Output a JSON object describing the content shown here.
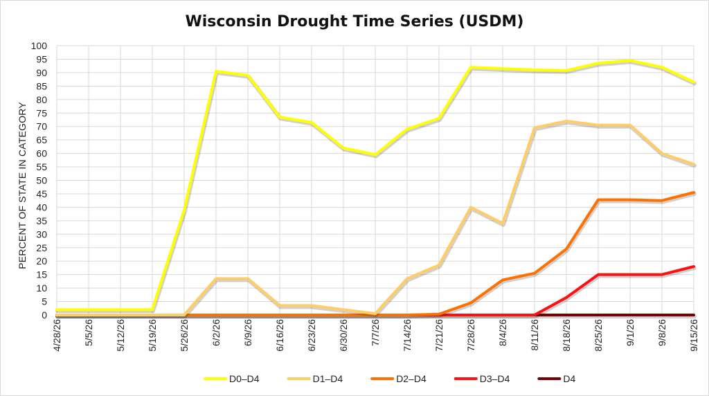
{
  "chart_data": {
    "type": "line",
    "title": "Wisconsin Drought Time Series (USDM)",
    "xlabel": "",
    "ylabel": "PERCENT OF STATE IN CATEGORY",
    "ylim": [
      0,
      100
    ],
    "ytick_step": 5,
    "grid": "vertical and horizontal",
    "legend_position": "bottom",
    "categories": [
      "4/28/26",
      "5/5/26",
      "5/12/26",
      "5/19/26",
      "5/26/26",
      "6/2/26",
      "6/9/26",
      "6/16/26",
      "6/23/26",
      "6/30/26",
      "7/7/26",
      "7/14/26",
      "7/21/26",
      "7/28/26",
      "8/4/26",
      "8/11/26",
      "8/18/26",
      "8/25/26",
      "9/1/26",
      "9/8/26",
      "9/15/26"
    ],
    "series": [
      {
        "name": "D0–D4",
        "color": "#FFFF00",
        "values": [
          2,
          2,
          2,
          2,
          39,
          90.5,
          89,
          73.5,
          71.5,
          62,
          59.5,
          69,
          73,
          92,
          91.5,
          91,
          90.8,
          93.5,
          94.5,
          92,
          86.5
        ]
      },
      {
        "name": "D1–D4",
        "color": "#FFCC66",
        "values": [
          0,
          0,
          0,
          0,
          0,
          13.5,
          13.5,
          3.5,
          3.5,
          2,
          0.5,
          13.5,
          18.5,
          40,
          34,
          69.5,
          72,
          70.5,
          70.5,
          60,
          56
        ]
      },
      {
        "name": "D2–D4",
        "color": "#FF7000",
        "values": [
          0,
          0,
          0,
          0,
          0,
          0,
          0,
          0,
          0,
          0,
          0,
          0,
          0.3,
          4.5,
          13,
          15.5,
          24.5,
          42.8,
          42.8,
          42.5,
          45.5
        ]
      },
      {
        "name": "D3–D4",
        "color": "#FF1010",
        "values": [
          0,
          0,
          0,
          0,
          0,
          0,
          0,
          0,
          0,
          0,
          0,
          0,
          0,
          0,
          0,
          0,
          6.5,
          15,
          15,
          15,
          18
        ]
      },
      {
        "name": "D4",
        "color": "#7A0000",
        "values": [
          0,
          0,
          0,
          0,
          0,
          0,
          0,
          0,
          0,
          0,
          0,
          0,
          0,
          0,
          0,
          0,
          0,
          0,
          0,
          0,
          0
        ]
      }
    ]
  }
}
